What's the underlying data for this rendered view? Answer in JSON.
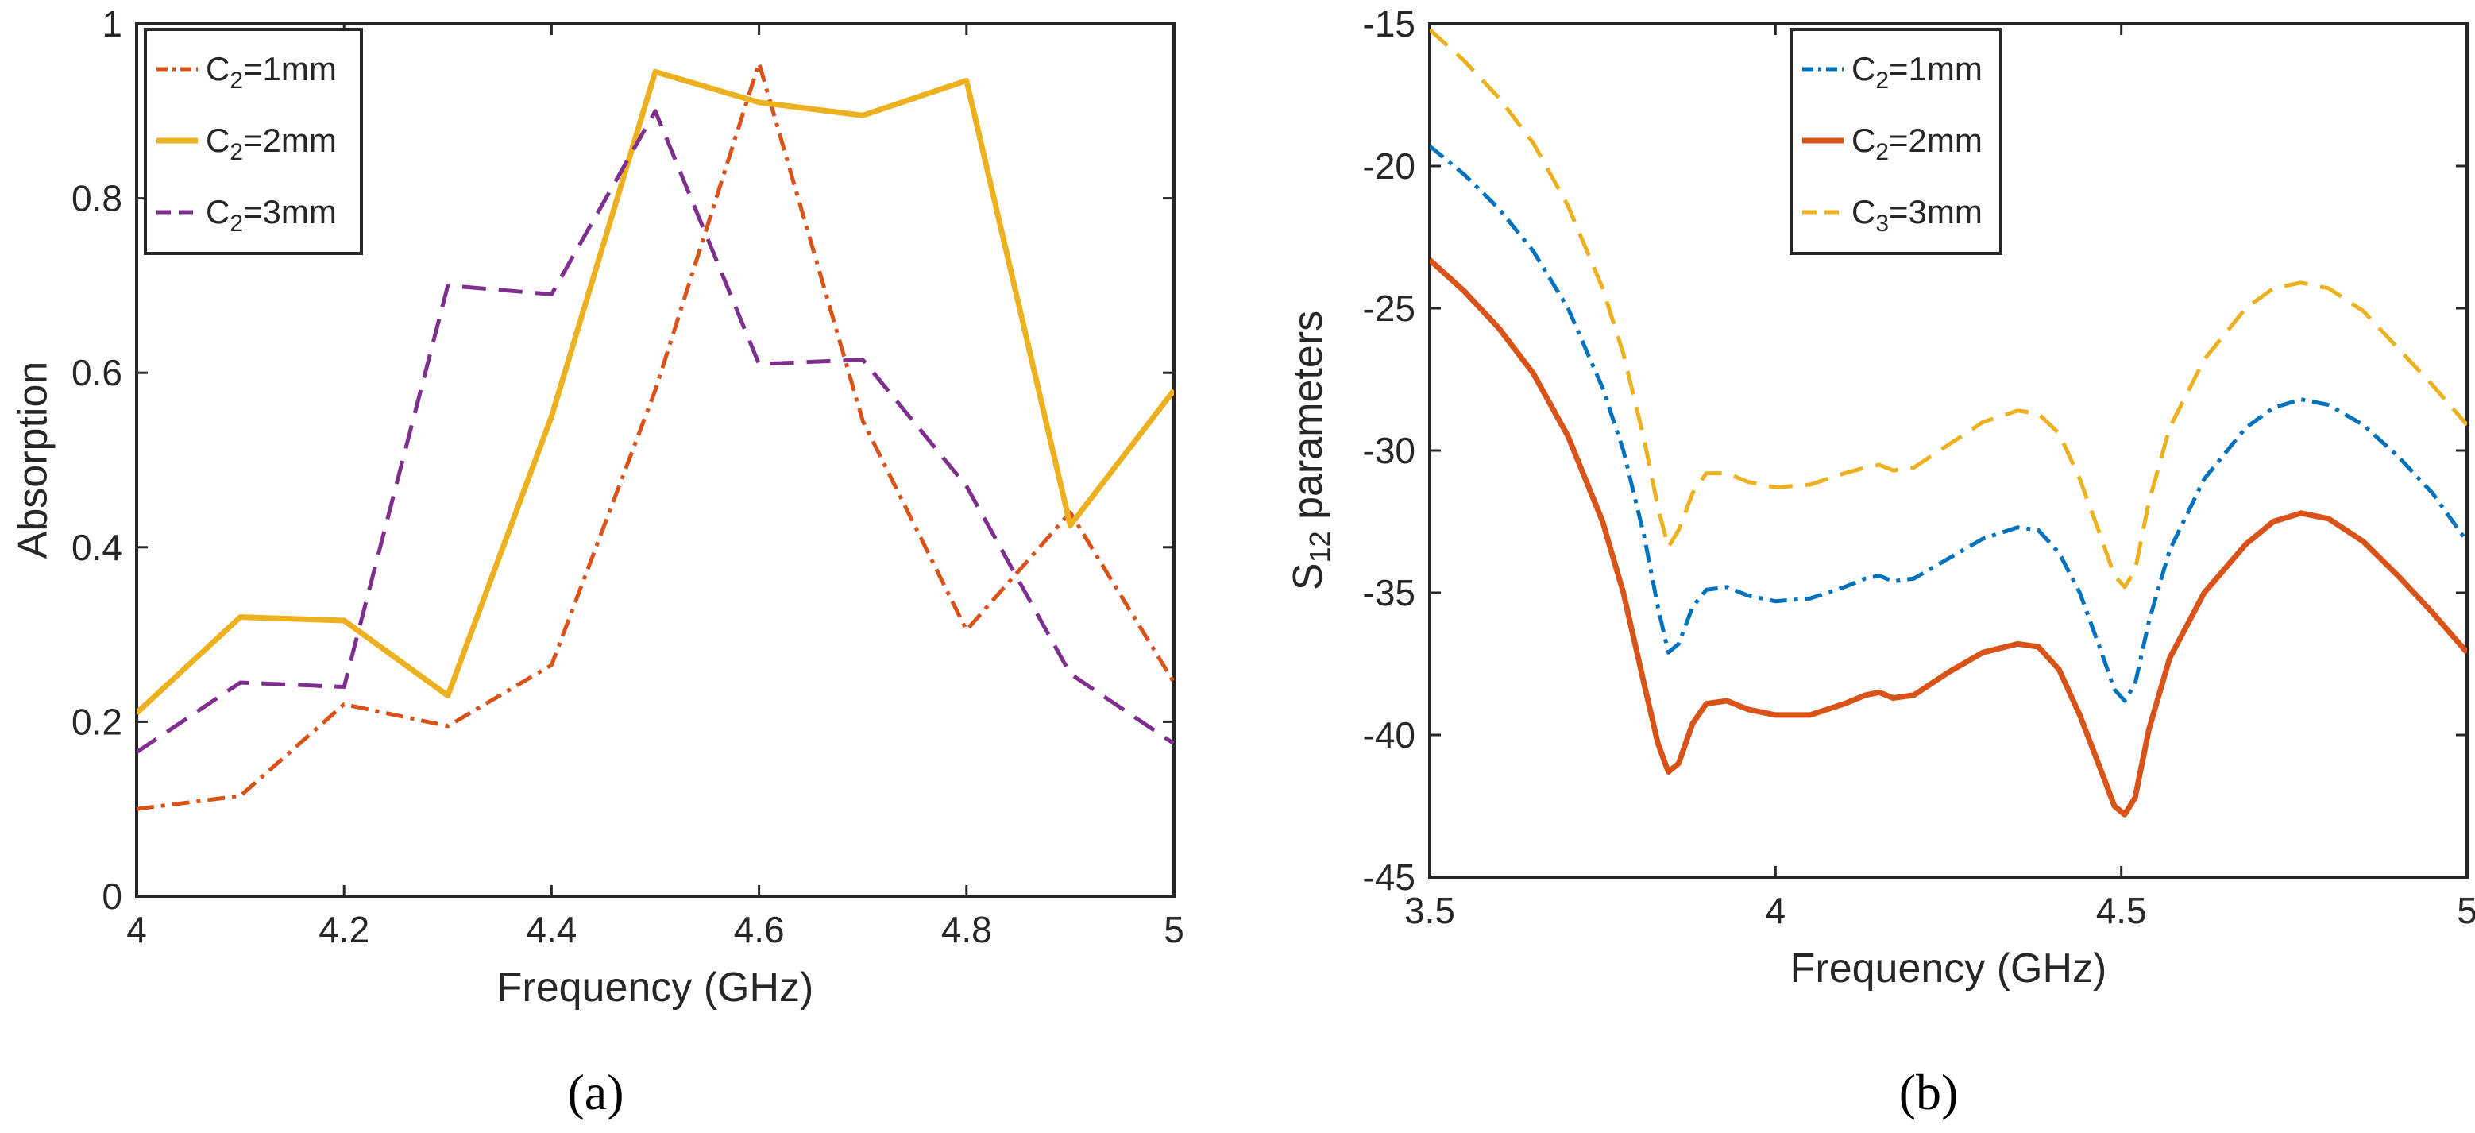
{
  "chart_data": [
    {
      "type": "line",
      "panel_label": "(a)",
      "xlabel": "Frequency (GHz)",
      "ylabel": "Absorption",
      "xlim": [
        4,
        5
      ],
      "ylim": [
        0,
        1
      ],
      "xticks": [
        4,
        4.2,
        4.4,
        4.6,
        4.8,
        5
      ],
      "xtick_labels": [
        "4",
        "4.2",
        "4.4",
        "4.6",
        "4.8",
        "5"
      ],
      "yticks": [
        0,
        0.2,
        0.4,
        0.6,
        0.8,
        1
      ],
      "ytick_labels": [
        "0",
        "0.2",
        "0.4",
        "0.6",
        "0.8",
        "1"
      ],
      "grid": false,
      "legend_position": "top-left",
      "series": [
        {
          "name": "C2=1mm",
          "label_main": "C",
          "label_sub": "2",
          "label_rest": "=1mm",
          "color": "#D95319",
          "style": "dashdot",
          "x": [
            4,
            4.1,
            4.2,
            4.3,
            4.4,
            4.5,
            4.6,
            4.7,
            4.8,
            4.9,
            5
          ],
          "y": [
            0.1,
            0.115,
            0.22,
            0.195,
            0.265,
            0.58,
            0.955,
            0.545,
            0.305,
            0.44,
            0.245
          ]
        },
        {
          "name": "C2=2mm",
          "label_main": "C",
          "label_sub": "2",
          "label_rest": "=2mm",
          "color": "#EDB120",
          "style": "solid",
          "x": [
            4,
            4.1,
            4.2,
            4.3,
            4.4,
            4.5,
            4.6,
            4.7,
            4.8,
            4.9,
            5
          ],
          "y": [
            0.21,
            0.32,
            0.316,
            0.23,
            0.55,
            0.945,
            0.91,
            0.895,
            0.935,
            0.425,
            0.58
          ]
        },
        {
          "name": "C2=3mm",
          "label_main": "C",
          "label_sub": "2",
          "label_rest": "=3mm",
          "color": "#7E2F8E",
          "style": "dashed",
          "x": [
            4,
            4.1,
            4.2,
            4.3,
            4.4,
            4.5,
            4.6,
            4.7,
            4.8,
            4.9,
            5
          ],
          "y": [
            0.165,
            0.245,
            0.24,
            0.7,
            0.69,
            0.9,
            0.61,
            0.615,
            0.47,
            0.255,
            0.175
          ]
        }
      ]
    },
    {
      "type": "line",
      "panel_label": "(b)",
      "xlabel": "Frequency (GHz)",
      "ylabel_main": "S",
      "ylabel_sub": "12",
      "ylabel_rest": " parameters",
      "xlim": [
        3.5,
        5
      ],
      "ylim": [
        -45,
        -15
      ],
      "xticks": [
        3.5,
        4,
        4.5,
        5
      ],
      "xtick_labels": [
        "3.5",
        "4",
        "4.5",
        "5"
      ],
      "yticks": [
        -45,
        -40,
        -35,
        -30,
        -25,
        -20,
        -15
      ],
      "ytick_labels": [
        "-45",
        "-40",
        "-35",
        "-30",
        "-25",
        "-20",
        "-15"
      ],
      "grid": false,
      "legend_position": "top-center",
      "series": [
        {
          "name": "C2=1mm",
          "label_main": "C",
          "label_sub": "2",
          "label_rest": "=1mm",
          "color": "#0072BD",
          "style": "dashdot",
          "x": [
            3.5,
            3.55,
            3.6,
            3.65,
            3.7,
            3.75,
            3.78,
            3.81,
            3.83,
            3.845,
            3.86,
            3.88,
            3.9,
            3.93,
            3.96,
            4.0,
            4.05,
            4.1,
            4.13,
            4.15,
            4.17,
            4.2,
            4.25,
            4.3,
            4.35,
            4.38,
            4.41,
            4.44,
            4.47,
            4.49,
            4.505,
            4.52,
            4.54,
            4.57,
            4.62,
            4.68,
            4.72,
            4.76,
            4.8,
            4.85,
            4.9,
            4.95,
            5.0
          ],
          "y": [
            -19.3,
            -20.3,
            -21.5,
            -23.0,
            -25.0,
            -27.8,
            -30.0,
            -33.0,
            -35.5,
            -37.1,
            -36.8,
            -35.5,
            -34.9,
            -34.8,
            -35.1,
            -35.3,
            -35.2,
            -34.8,
            -34.5,
            -34.4,
            -34.6,
            -34.5,
            -33.8,
            -33.1,
            -32.7,
            -32.8,
            -33.6,
            -35.0,
            -37.0,
            -38.4,
            -38.8,
            -38.2,
            -36.0,
            -33.5,
            -31.0,
            -29.2,
            -28.5,
            -28.2,
            -28.4,
            -29.1,
            -30.2,
            -31.5,
            -33.2
          ]
        },
        {
          "name": "C2=2mm",
          "label_main": "C",
          "label_sub": "2",
          "label_rest": "=2mm",
          "color": "#D95319",
          "style": "solid",
          "x": [
            3.5,
            3.55,
            3.6,
            3.65,
            3.7,
            3.75,
            3.78,
            3.81,
            3.83,
            3.845,
            3.86,
            3.88,
            3.9,
            3.93,
            3.96,
            4.0,
            4.05,
            4.1,
            4.13,
            4.15,
            4.17,
            4.2,
            4.25,
            4.3,
            4.35,
            4.38,
            4.41,
            4.44,
            4.47,
            4.49,
            4.505,
            4.52,
            4.54,
            4.57,
            4.62,
            4.68,
            4.72,
            4.76,
            4.8,
            4.85,
            4.9,
            4.95,
            5.0
          ],
          "y": [
            -23.3,
            -24.4,
            -25.7,
            -27.3,
            -29.5,
            -32.5,
            -35.0,
            -38.2,
            -40.3,
            -41.3,
            -41.0,
            -39.6,
            -38.9,
            -38.8,
            -39.1,
            -39.3,
            -39.3,
            -38.9,
            -38.6,
            -38.5,
            -38.7,
            -38.6,
            -37.8,
            -37.1,
            -36.8,
            -36.9,
            -37.7,
            -39.3,
            -41.2,
            -42.5,
            -42.8,
            -42.2,
            -39.8,
            -37.3,
            -35.0,
            -33.3,
            -32.5,
            -32.2,
            -32.4,
            -33.2,
            -34.4,
            -35.7,
            -37.1
          ]
        },
        {
          "name": "C3=3mm",
          "label_main": "C",
          "label_sub": "3",
          "label_rest": "=3mm",
          "color": "#EDB120",
          "style": "dashed",
          "x": [
            3.5,
            3.55,
            3.6,
            3.65,
            3.7,
            3.75,
            3.78,
            3.81,
            3.83,
            3.845,
            3.86,
            3.88,
            3.9,
            3.93,
            3.96,
            4.0,
            4.05,
            4.1,
            4.13,
            4.15,
            4.17,
            4.2,
            4.25,
            4.3,
            4.35,
            4.38,
            4.41,
            4.44,
            4.47,
            4.49,
            4.505,
            4.52,
            4.54,
            4.57,
            4.62,
            4.68,
            4.72,
            4.76,
            4.8,
            4.85,
            4.9,
            4.95,
            5.0
          ],
          "y": [
            -15.2,
            -16.3,
            -17.6,
            -19.2,
            -21.4,
            -24.3,
            -26.6,
            -29.6,
            -32.0,
            -33.4,
            -32.8,
            -31.5,
            -30.8,
            -30.8,
            -31.1,
            -31.3,
            -31.2,
            -30.8,
            -30.6,
            -30.5,
            -30.7,
            -30.6,
            -29.8,
            -29.0,
            -28.6,
            -28.7,
            -29.4,
            -31.0,
            -33.0,
            -34.4,
            -34.8,
            -34.2,
            -31.8,
            -29.2,
            -26.8,
            -25.0,
            -24.3,
            -24.1,
            -24.3,
            -25.1,
            -26.4,
            -27.7,
            -29.1
          ]
        }
      ]
    }
  ]
}
